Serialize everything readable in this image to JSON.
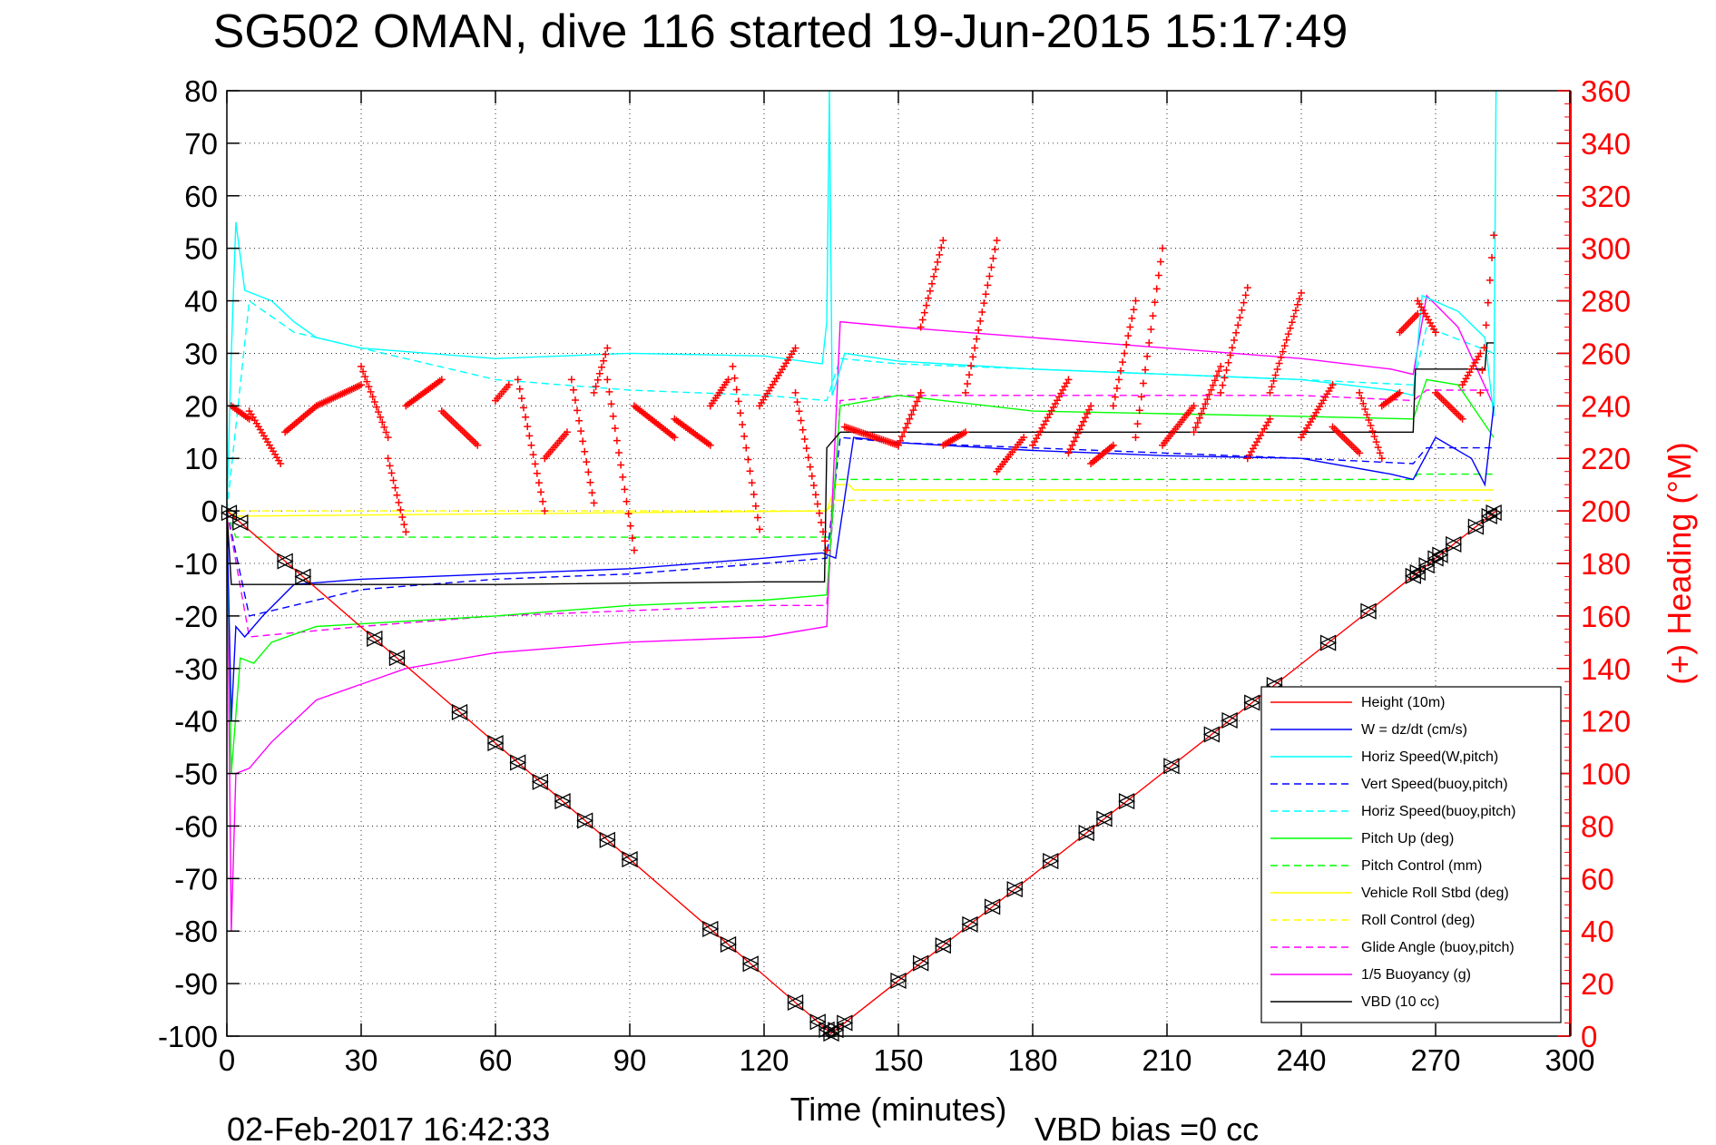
{
  "title": "SG502 OMAN, dive 116 started 19-Jun-2015 15:17:49",
  "footer": {
    "timestamp": "02-Feb-2017 16:42:33",
    "vbd_bias": "VBD bias =0 cc"
  },
  "chart_data": {
    "type": "line",
    "xlabel": "Time (minutes)",
    "ylabel": "",
    "y2label": "(+) Heading (°M)",
    "xlim": [
      0,
      300
    ],
    "ylim": [
      -100,
      80
    ],
    "y2lim": [
      0,
      360
    ],
    "xticks": [
      "0",
      "30",
      "60",
      "90",
      "120",
      "150",
      "180",
      "210",
      "240",
      "270",
      "300"
    ],
    "yticks": [
      "80",
      "70",
      "60",
      "50",
      "40",
      "30",
      "20",
      "10",
      "0",
      "-10",
      "-20",
      "-30",
      "-40",
      "-50",
      "-60",
      "-70",
      "-80",
      "-90",
      "-100"
    ],
    "y2ticks": [
      "360",
      "340",
      "320",
      "300",
      "280",
      "260",
      "240",
      "220",
      "200",
      "180",
      "160",
      "140",
      "120",
      "100",
      "80",
      "60",
      "40",
      "20",
      "0"
    ],
    "grid": true,
    "legend_position": "bottom-right",
    "colors": {
      "height": "#ff0000",
      "w": "#0000ff",
      "horiz_speed": "#00ffff",
      "pitch": "#00ff00",
      "roll": "#ffff00",
      "glide": "#ff00ff",
      "buoyancy": "#ff00ff",
      "vbd": "#000000",
      "heading": "#ff0000"
    },
    "series": [
      {
        "name": "Height (10m)",
        "color": "#ff0000",
        "dash": false,
        "x": [
          0,
          135,
          283.5
        ],
        "y": [
          0,
          -99.5,
          0
        ]
      },
      {
        "name": "W = dz/dt (cm/s)",
        "color": "#0000ff",
        "dash": false,
        "x": [
          0,
          1,
          2,
          4,
          8,
          15,
          30,
          60,
          90,
          120,
          133,
          136,
          140,
          150,
          180,
          210,
          240,
          260,
          265,
          270,
          278,
          281,
          283
        ],
        "y": [
          0,
          -40,
          -22,
          -24,
          -20,
          -14,
          -13,
          -12,
          -11,
          -9,
          -8,
          -9,
          14,
          13,
          11.5,
          10.5,
          10,
          7,
          6,
          14,
          10,
          5,
          20
        ]
      },
      {
        "name": "Horiz Speed(W,pitch)",
        "color": "#00ffff",
        "dash": false,
        "x": [
          0,
          1,
          2,
          4,
          10,
          15,
          20,
          30,
          60,
          90,
          120,
          133,
          134,
          134.6,
          135.2,
          136,
          138,
          150,
          180,
          210,
          240,
          260,
          265,
          267,
          275,
          281,
          283,
          283.5
        ],
        "y": [
          0,
          30,
          55,
          42,
          40,
          36,
          33,
          31,
          29,
          30,
          29.5,
          28,
          36,
          80,
          22,
          24,
          30,
          28.5,
          27,
          26,
          25,
          23,
          22,
          41,
          38,
          33,
          18,
          80
        ]
      },
      {
        "name": "Vert Speed(buoy,pitch)",
        "color": "#0000ff",
        "dash": true,
        "x": [
          0,
          5,
          30,
          60,
          90,
          120,
          134,
          137,
          150,
          180,
          210,
          240,
          265,
          268,
          283
        ],
        "y": [
          0,
          -20,
          -15,
          -13,
          -12,
          -10,
          -9,
          14,
          13,
          12,
          11,
          10,
          9,
          12,
          12
        ]
      },
      {
        "name": "Horiz Speed(buoy,pitch)",
        "color": "#00ffff",
        "dash": true,
        "x": [
          0,
          5,
          15,
          30,
          60,
          90,
          120,
          134,
          137,
          150,
          180,
          210,
          240,
          265,
          268,
          283
        ],
        "y": [
          0,
          40,
          34,
          31,
          25,
          23,
          22,
          21,
          29,
          28,
          27,
          26,
          25,
          24,
          35,
          30
        ]
      },
      {
        "name": "Pitch Up (deg)",
        "color": "#00ff00",
        "dash": false,
        "x": [
          0,
          1,
          3,
          6,
          10,
          20,
          40,
          60,
          90,
          120,
          134,
          137,
          150,
          180,
          210,
          240,
          265,
          268,
          275,
          283
        ],
        "y": [
          0,
          -50,
          -28,
          -29,
          -25,
          -22,
          -21,
          -20,
          -18,
          -17,
          -16,
          20,
          22,
          19,
          18.5,
          18,
          17.5,
          25,
          24,
          14
        ]
      },
      {
        "name": "Pitch Control (mm)",
        "color": "#00ff00",
        "dash": true,
        "x": [
          0,
          2,
          135,
          136,
          265,
          266,
          283
        ],
        "y": [
          0,
          -5,
          -5,
          6,
          6,
          7,
          7
        ]
      },
      {
        "name": "Vehicle Roll Stbd (deg)",
        "color": "#ffff00",
        "dash": false,
        "x": [
          0,
          2,
          134,
          136,
          139,
          140,
          283
        ],
        "y": [
          0,
          -1,
          0,
          5,
          5,
          4,
          4
        ]
      },
      {
        "name": "Roll Control (deg)",
        "color": "#ffff00",
        "dash": true,
        "x": [
          0,
          2,
          134,
          136,
          139,
          140,
          283
        ],
        "y": [
          0,
          0,
          0,
          2,
          2,
          2,
          2
        ]
      },
      {
        "name": "Glide Angle (buoy,pitch)",
        "color": "#ff00ff",
        "dash": true,
        "x": [
          0,
          5,
          30,
          60,
          90,
          120,
          134,
          137,
          150,
          180,
          210,
          240,
          265,
          268,
          283
        ],
        "y": [
          0,
          -24,
          -22,
          -20,
          -19,
          -18,
          -18,
          21,
          22,
          22,
          22,
          22,
          21,
          23,
          23
        ]
      },
      {
        "name": "1/5 Buoyancy (g)",
        "color": "#ff00ff",
        "dash": false,
        "x": [
          0,
          1,
          2,
          5,
          10,
          15,
          20,
          30,
          40,
          60,
          90,
          120,
          134,
          137,
          150,
          180,
          210,
          240,
          260,
          265,
          268,
          275,
          283
        ],
        "y": [
          0,
          -80,
          -50,
          -49,
          -44,
          -40,
          -36,
          -33,
          -30,
          -27,
          -25,
          -24,
          -22,
          36,
          35,
          33,
          31,
          29,
          27,
          26,
          41,
          35,
          20
        ]
      },
      {
        "name": "VBD (10 cc)",
        "color": "#000000",
        "dash": false,
        "x": [
          0,
          1,
          2,
          60,
          120,
          133.5,
          134,
          137,
          150,
          180,
          210,
          240,
          265,
          265.5,
          281,
          281.5,
          283
        ],
        "y": [
          0,
          -14,
          -14,
          -14,
          -13.5,
          -13.5,
          12,
          15,
          15,
          15,
          15,
          15,
          15,
          27,
          27,
          32,
          32
        ]
      }
    ],
    "heading_series": {
      "name": "(+) Heading",
      "color": "#ff0000",
      "segments": [
        {
          "x0": 1,
          "x1": 5,
          "h0": 240,
          "h1": 235
        },
        {
          "x0": 5,
          "x1": 12,
          "h0": 238,
          "h1": 218
        },
        {
          "x0": 13,
          "x1": 20,
          "h0": 230,
          "h1": 240
        },
        {
          "x0": 20,
          "x1": 30,
          "h0": 240,
          "h1": 248
        },
        {
          "x0": 30,
          "x1": 36,
          "h0": 255,
          "h1": 228
        },
        {
          "x0": 36,
          "x1": 40,
          "h0": 220,
          "h1": 192
        },
        {
          "x0": 40,
          "x1": 48,
          "h0": 240,
          "h1": 250
        },
        {
          "x0": 48,
          "x1": 56,
          "h0": 238,
          "h1": 225
        },
        {
          "x0": 60,
          "x1": 63,
          "h0": 242,
          "h1": 248
        },
        {
          "x0": 65,
          "x1": 71,
          "h0": 250,
          "h1": 200
        },
        {
          "x0": 71,
          "x1": 76,
          "h0": 220,
          "h1": 230
        },
        {
          "x0": 77,
          "x1": 82,
          "h0": 250,
          "h1": 203
        },
        {
          "x0": 82,
          "x1": 85,
          "h0": 245,
          "h1": 262
        },
        {
          "x0": 85,
          "x1": 91,
          "h0": 250,
          "h1": 185
        },
        {
          "x0": 91,
          "x1": 100,
          "h0": 240,
          "h1": 228
        },
        {
          "x0": 100,
          "x1": 108,
          "h0": 235,
          "h1": 225
        },
        {
          "x0": 108,
          "x1": 112,
          "h0": 240,
          "h1": 250
        },
        {
          "x0": 113,
          "x1": 119,
          "h0": 255,
          "h1": 193
        },
        {
          "x0": 119,
          "x1": 127,
          "h0": 240,
          "h1": 262
        },
        {
          "x0": 127,
          "x1": 134,
          "h0": 245,
          "h1": 185
        },
        {
          "x0": 138,
          "x1": 150,
          "h0": 232,
          "h1": 225
        },
        {
          "x0": 150,
          "x1": 155,
          "h0": 225,
          "h1": 245
        },
        {
          "x0": 155,
          "x1": 160,
          "h0": 270,
          "h1": 303
        },
        {
          "x0": 160,
          "x1": 165,
          "h0": 225,
          "h1": 230
        },
        {
          "x0": 165,
          "x1": 172,
          "h0": 245,
          "h1": 303
        },
        {
          "x0": 172,
          "x1": 178,
          "h0": 215,
          "h1": 228
        },
        {
          "x0": 180,
          "x1": 188,
          "h0": 225,
          "h1": 250
        },
        {
          "x0": 188,
          "x1": 193,
          "h0": 222,
          "h1": 240
        },
        {
          "x0": 193,
          "x1": 198,
          "h0": 218,
          "h1": 225
        },
        {
          "x0": 198,
          "x1": 203,
          "h0": 240,
          "h1": 280
        },
        {
          "x0": 203,
          "x1": 209,
          "h0": 228,
          "h1": 300
        },
        {
          "x0": 209,
          "x1": 216,
          "h0": 225,
          "h1": 240
        },
        {
          "x0": 216,
          "x1": 222,
          "h0": 230,
          "h1": 255
        },
        {
          "x0": 222,
          "x1": 228,
          "h0": 245,
          "h1": 285
        },
        {
          "x0": 228,
          "x1": 233,
          "h0": 220,
          "h1": 235
        },
        {
          "x0": 233,
          "x1": 240,
          "h0": 245,
          "h1": 283
        },
        {
          "x0": 240,
          "x1": 247,
          "h0": 228,
          "h1": 248
        },
        {
          "x0": 247,
          "x1": 253,
          "h0": 232,
          "h1": 222
        },
        {
          "x0": 253,
          "x1": 258,
          "h0": 245,
          "h1": 220
        },
        {
          "x0": 258,
          "x1": 262,
          "h0": 240,
          "h1": 245
        },
        {
          "x0": 262,
          "x1": 266,
          "h0": 268,
          "h1": 275
        },
        {
          "x0": 266,
          "x1": 270,
          "h0": 280,
          "h1": 268
        },
        {
          "x0": 270,
          "x1": 276,
          "h0": 245,
          "h1": 235
        },
        {
          "x0": 276,
          "x1": 280,
          "h0": 248,
          "h1": 260
        },
        {
          "x0": 280,
          "x1": 283,
          "h0": 245,
          "h1": 305
        }
      ]
    },
    "markers": {
      "color": "#000000",
      "x": [
        0.5,
        3,
        13,
        17,
        33,
        38,
        52,
        60,
        65,
        70,
        75,
        80,
        85,
        90,
        108,
        112,
        117,
        127,
        132,
        134,
        135,
        136,
        138,
        150,
        155,
        160,
        166,
        171,
        176,
        184,
        192,
        196,
        201,
        211,
        220,
        224,
        229,
        234,
        246,
        255,
        265,
        266,
        268,
        270,
        271,
        274,
        279,
        282,
        283
      ]
    }
  }
}
